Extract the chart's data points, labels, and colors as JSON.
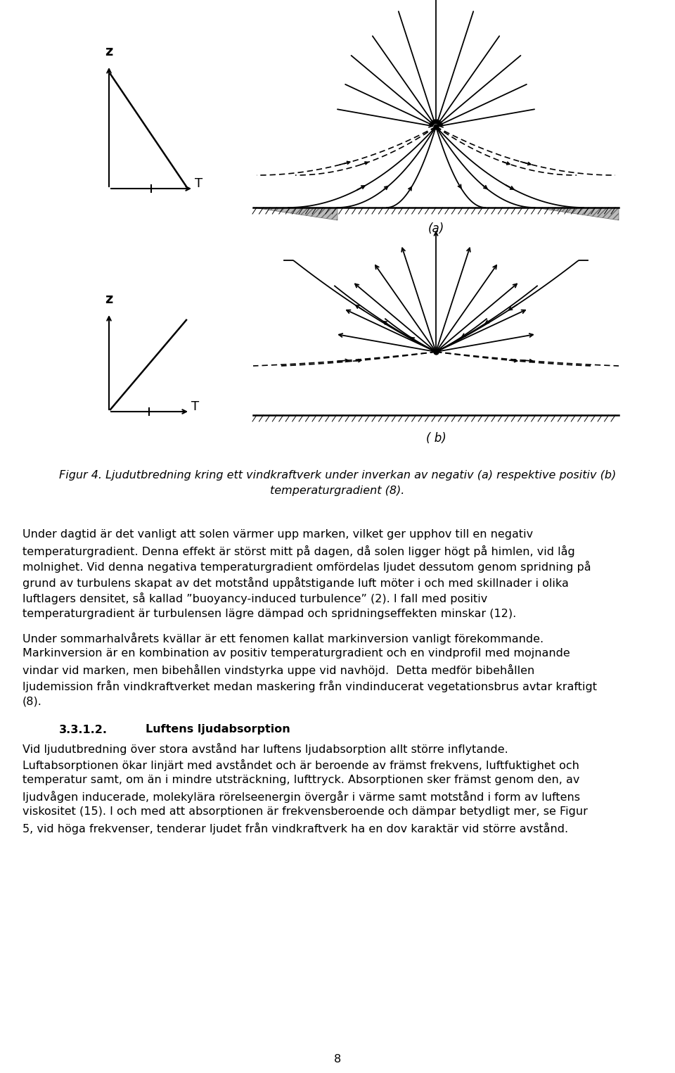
{
  "figsize": [
    9.6,
    15.25
  ],
  "dpi": 100,
  "bg_color": "#ffffff",
  "figure_caption_line1": "Figur 4. Ljudutbredning kring ett vindkraftverk under inverkan av negativ (a) respektive positiv (b)",
  "figure_caption_line2": "temperaturgradient (8).",
  "para1_lines": [
    "Under dagtid är det vanligt att solen värmer upp marken, vilket ger upphov till en negativ",
    "temperaturgradient. Denna effekt är störst mitt på dagen, då solen ligger högt på himlen, vid låg",
    "molnighet. Vid denna negativa temperaturgradient omfördelas ljudet dessutom genom spridning på",
    "grund av turbulens skapat av det motstånd uppåtstigande luft möter i och med skillnader i olika",
    "luftlagers densitet, så kallad ”buoyancy-induced turbulence” (2). I fall med positiv",
    "temperaturgradient är turbulensen lägre dämpad och spridningseffekten minskar (12)."
  ],
  "para2_lines": [
    "Under sommarhalvårets kvällar är ett fenomen kallat markinversion vanligt förekommande.",
    "Markinversion är en kombination av positiv temperaturgradient och en vindprofil med mojnande",
    "vindar vid marken, men bibehållen vindstyrka uppe vid navhöjd.  Detta medför bibehållen",
    "ljudemission från vindkraftverket medan maskering från vindinducerat vegetationsbrus avtar kraftigt",
    "(8)."
  ],
  "heading_num": "3.3.1.2.",
  "heading_title": "Luftens ljudabsorption",
  "para3_lines": [
    "Vid ljudutbredning över stora avstånd har luftens ljudabsorption allt större inflytande.",
    "Luftabsorptionen ökar linjärt med avståndet och är beroende av främst frekvens, luftfuktighet och",
    "temperatur samt, om än i mindre utsträckning, lufttryck. Absorptionen sker främst genom den, av",
    "ljudvågen inducerade, molekylära rörelseenergin övergår i värme samt motstånd i form av luftens",
    "viskositet (15). I och med att absorptionen är frekvensberoende och dämpar betydligt mer, se Figur",
    "5, vid höga frekvenser, tenderar ljudet från vindkraftverk ha en dov karaktär vid större avstånd."
  ],
  "page_number": "8"
}
